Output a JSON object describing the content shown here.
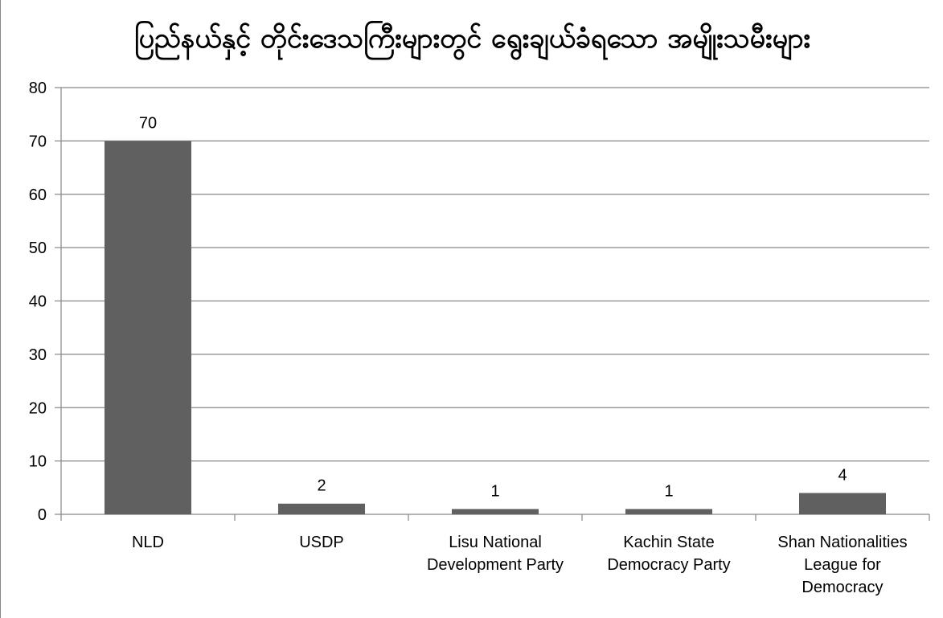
{
  "chart_data": {
    "type": "bar",
    "title": "ပြည်နယ်နှင့် တိုင်းဒေသကြီးများတွင် ရွေးချယ်ခံရသော အမျိုးသမီးများ",
    "categories": [
      [
        "NLD"
      ],
      [
        "USDP"
      ],
      [
        "Lisu National",
        "Development Party"
      ],
      [
        "Kachin State",
        "Democracy Party"
      ],
      [
        "Shan Nationalities",
        "League for",
        "Democracy"
      ]
    ],
    "values": [
      70,
      2,
      1,
      1,
      4
    ],
    "data_labels": [
      "70",
      "2",
      "1",
      "1",
      "4"
    ],
    "ylim": [
      0,
      80
    ],
    "yticks": [
      0,
      10,
      20,
      30,
      40,
      50,
      60,
      70,
      80
    ],
    "grid": true,
    "legend": "none",
    "bar_color": "#606060",
    "gridline_color": "#868686"
  }
}
